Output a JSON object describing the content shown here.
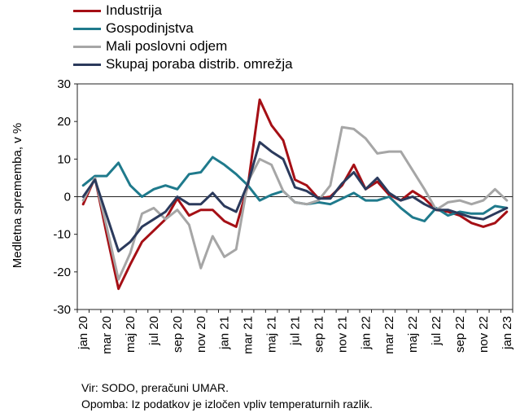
{
  "chart_data": {
    "type": "line",
    "ylabel": "Medletna sprememba, v %",
    "ylim": [
      -30,
      30
    ],
    "yticks": [
      30,
      20,
      10,
      0,
      -10,
      -20,
      -30
    ],
    "x": [
      "jan 20",
      "feb 20",
      "mar 20",
      "apr 20",
      "maj 20",
      "jun 20",
      "jul 20",
      "avg 20",
      "sep 20",
      "okt 20",
      "nov 20",
      "dec 20",
      "jan 21",
      "feb 21",
      "mar 21",
      "apr 21",
      "maj 21",
      "jun 21",
      "jul 21",
      "avg 21",
      "sep 21",
      "okt 21",
      "nov 21",
      "dec 21",
      "jan 22",
      "feb 22",
      "mar 22",
      "apr 22",
      "maj 22",
      "jun 22",
      "jul 22",
      "avg 22",
      "sep 22",
      "okt 22",
      "nov 22",
      "dec 22",
      "jan 23"
    ],
    "xtick_labels": [
      "jan 20",
      "mar 20",
      "maj 20",
      "jul 20",
      "sep 20",
      "nov 20",
      "jan 21",
      "mar 21",
      "maj 21",
      "jul 21",
      "sep 21",
      "nov 21",
      "jan 22",
      "mar 22",
      "maj 22",
      "jul 22",
      "sep 22",
      "nov 22",
      "jan 23"
    ],
    "series": [
      {
        "name": "Industrija",
        "color": "#a50f15",
        "values": [
          -2,
          5,
          -10,
          -24.5,
          -18,
          -12,
          -9,
          -6,
          -0.5,
          -5,
          -3.5,
          -3.5,
          -6.5,
          -8,
          3,
          25.8,
          19,
          15,
          4.5,
          3,
          -0.5,
          0,
          3,
          8.5,
          2,
          4,
          0.5,
          -1,
          1.5,
          -0.5,
          -3.5,
          -4,
          -5,
          -7,
          -8,
          -7,
          -4
        ]
      },
      {
        "name": "Gospodinjstva",
        "color": "#1f7a8c",
        "values": [
          3,
          5.5,
          5.5,
          9,
          3,
          0,
          2,
          3,
          2,
          6,
          6.5,
          10.5,
          8.5,
          6,
          3,
          -1,
          0.5,
          1.5,
          -1.5,
          -2,
          -1.5,
          -2,
          -0.5,
          1,
          -1,
          -1,
          0,
          -3,
          -5.5,
          -6.5,
          -3,
          -5,
          -4,
          -4.5,
          -4.5,
          -2.5,
          -3
        ]
      },
      {
        "name": "Mali poslovni odjem",
        "color": "#a6a6a6",
        "values": [
          -1,
          5,
          -8,
          -22,
          -15,
          -4.5,
          -3,
          -6,
          -3.5,
          -7.5,
          -19,
          -10.5,
          -16,
          -14,
          4,
          10,
          8.5,
          1.5,
          -1.5,
          -2,
          -1,
          3,
          18.5,
          18,
          15.5,
          11.5,
          12,
          12,
          7,
          2,
          -3.5,
          -1.5,
          -1,
          -2,
          -1,
          2,
          -1
        ]
      },
      {
        "name": "Skupaj poraba distrib. omrežja",
        "color": "#2b3a5c",
        "values": [
          0,
          4.5,
          -5,
          -14.5,
          -12,
          -8,
          -6,
          -4,
          0,
          -2,
          -2,
          1,
          -2.5,
          -4,
          3.5,
          14.5,
          12,
          10,
          2.5,
          1.5,
          -0.5,
          -0.5,
          3.5,
          6.5,
          2,
          5,
          1,
          -1,
          0,
          -2,
          -3.5,
          -3.5,
          -4.5,
          -5.5,
          -6,
          -4.5,
          -3
        ]
      }
    ]
  },
  "notes": {
    "source": "Vir: SODO, preračuni UMAR.",
    "note": "Opomba: Iz podatkov je izločen vpliv temperaturnih razlik."
  }
}
